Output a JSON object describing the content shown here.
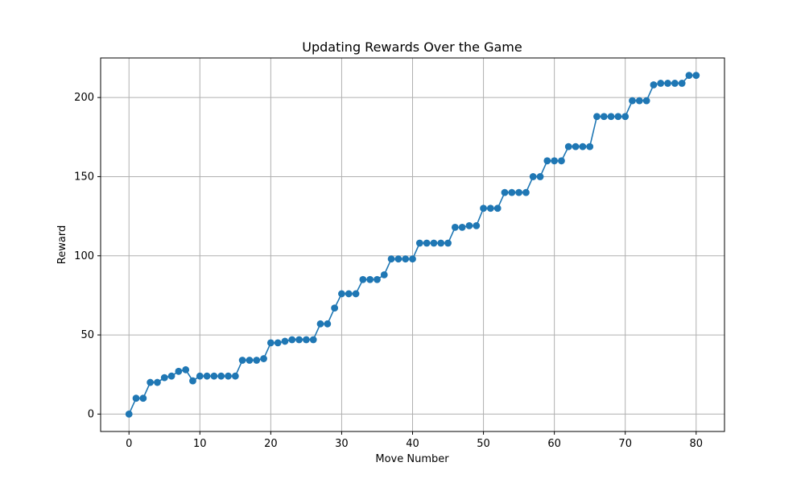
{
  "chart_data": {
    "type": "line",
    "title": "Updating Rewards Over the Game",
    "xlabel": "Move Number",
    "ylabel": "Reward",
    "xlim": [
      -4,
      84
    ],
    "ylim": [
      -11,
      225
    ],
    "x_ticks": [
      0,
      10,
      20,
      30,
      40,
      50,
      60,
      70,
      80
    ],
    "y_ticks": [
      0,
      50,
      100,
      150,
      200
    ],
    "grid": true,
    "series": [
      {
        "color": "#1f77b4",
        "marker": "circle",
        "x": [
          0,
          1,
          2,
          3,
          4,
          5,
          6,
          7,
          8,
          9,
          10,
          11,
          12,
          13,
          14,
          15,
          16,
          17,
          18,
          19,
          20,
          21,
          22,
          23,
          24,
          25,
          26,
          27,
          28,
          29,
          30,
          31,
          32,
          33,
          34,
          35,
          36,
          37,
          38,
          39,
          40,
          41,
          42,
          43,
          44,
          45,
          46,
          47,
          48,
          49,
          50,
          51,
          52,
          53,
          54,
          55,
          56,
          57,
          58,
          59,
          60,
          61,
          62,
          63,
          64,
          65,
          66,
          67,
          68,
          69,
          70,
          71,
          72,
          73,
          74,
          75,
          76,
          77,
          78,
          79,
          80
        ],
        "y": [
          0,
          10,
          10,
          20,
          20,
          23,
          24,
          27,
          28,
          21,
          24,
          24,
          24,
          24,
          24,
          24,
          34,
          34,
          34,
          35,
          45,
          45,
          46,
          47,
          47,
          47,
          47,
          57,
          57,
          67,
          76,
          76,
          76,
          85,
          85,
          85,
          88,
          98,
          98,
          98,
          98,
          108,
          108,
          108,
          108,
          108,
          118,
          118,
          119,
          119,
          130,
          130,
          130,
          140,
          140,
          140,
          140,
          150,
          150,
          160,
          160,
          160,
          169,
          169,
          169,
          169,
          188,
          188,
          188,
          188,
          188,
          198,
          198,
          198,
          208,
          209,
          209,
          209,
          209,
          214,
          214
        ]
      }
    ]
  }
}
